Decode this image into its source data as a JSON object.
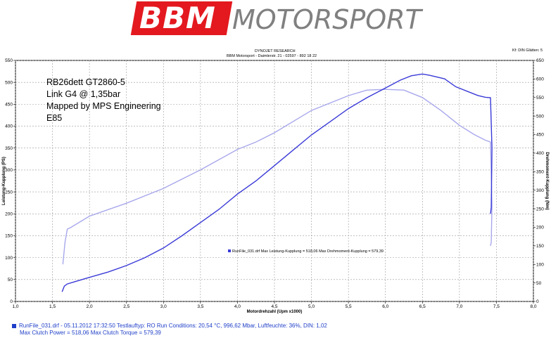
{
  "logo": {
    "brand": "BBM",
    "brand_suffix": "MOTORSPORT"
  },
  "header": {
    "line1": "DYNOJET RESEARCH",
    "line2": "BBM Motorsport - Daimlerstr. 21 - 02597 - 892 18 22",
    "right": "Kf: DIN  Glätten: 5"
  },
  "annotations": [
    "RB26dett GT2860-5",
    "Link G4 @ 1,35bar",
    "Mapped by MPS Engineering",
    "E85"
  ],
  "legend_text": "RunFile_031.drf Max Leistung-Kupplung = 518,06    Max Drehmoment-Kupplung = 579,39",
  "footer": {
    "line1": "RunFile_031.drf - 05.11.2012 17:32:50  Testlauftyp: RO  Run Conditions: 20,54 °C, 996,62 Mbar,  Luftfeuchte: 36%, DIN: 1,02",
    "line2": "Max Clutch Power = 518,06  Max Clutch Torque = 579,39"
  },
  "colors": {
    "power": "#3a3ad8",
    "torque": "#a8a8ec",
    "footer_text": "#1f3fc8",
    "brand_red": "#e3191f",
    "brand_gray": "#808080"
  },
  "chart_data": {
    "type": "line",
    "xlabel": "Motordrehzahl (Upm x1000)",
    "ylabel_left": "Leistung-Kupplung (PS)",
    "ylabel_right": "Drehmoment-Kupplung (Nm)",
    "xlim": [
      1.0,
      8.0
    ],
    "ylim_left": [
      0,
      550
    ],
    "ylim_right": [
      0,
      650
    ],
    "x_ticks": [
      "1,0",
      "1,5",
      "2,0",
      "2,5",
      "3,0",
      "3,5",
      "4,0",
      "4,5",
      "5,0",
      "5,5",
      "6,0",
      "6,5",
      "7,0",
      "7,5",
      "8,0"
    ],
    "y_ticks_left": [
      "0",
      "50",
      "100",
      "150",
      "200",
      "250",
      "300",
      "350",
      "400",
      "450",
      "500",
      "550"
    ],
    "y_ticks_right": [
      "0",
      "50",
      "100",
      "150",
      "200",
      "250",
      "300",
      "350",
      "400",
      "450",
      "500",
      "550",
      "600",
      "650"
    ],
    "grid": true,
    "series": [
      {
        "axis": "left",
        "x": [
          1.63,
          1.66,
          1.7,
          1.8,
          2.0,
          2.25,
          2.5,
          2.75,
          3.0,
          3.25,
          3.5,
          3.75,
          4.0,
          4.25,
          4.5,
          4.75,
          5.0,
          5.25,
          5.5,
          5.75,
          6.0,
          6.2,
          6.35,
          6.5,
          6.6,
          6.8,
          6.95,
          7.1,
          7.25,
          7.35,
          7.42,
          7.44,
          7.43,
          7.42
        ],
        "values": [
          22,
          35,
          40,
          45,
          55,
          67,
          82,
          100,
          122,
          150,
          180,
          210,
          245,
          275,
          310,
          345,
          380,
          410,
          440,
          465,
          487,
          505,
          515,
          519,
          516,
          508,
          490,
          480,
          470,
          466,
          465,
          350,
          215,
          200
        ]
      },
      {
        "axis": "right",
        "x": [
          1.64,
          1.67,
          1.7,
          1.75,
          2.0,
          2.5,
          3.0,
          3.5,
          4.0,
          4.25,
          4.5,
          5.0,
          5.5,
          5.75,
          6.0,
          6.25,
          6.5,
          6.75,
          7.0,
          7.2,
          7.35,
          7.42,
          7.44,
          7.43,
          7.42
        ],
        "values": [
          100,
          160,
          195,
          200,
          230,
          265,
          305,
          355,
          410,
          430,
          455,
          515,
          555,
          570,
          572,
          570,
          550,
          515,
          475,
          450,
          435,
          430,
          260,
          160,
          150
        ]
      }
    ]
  }
}
